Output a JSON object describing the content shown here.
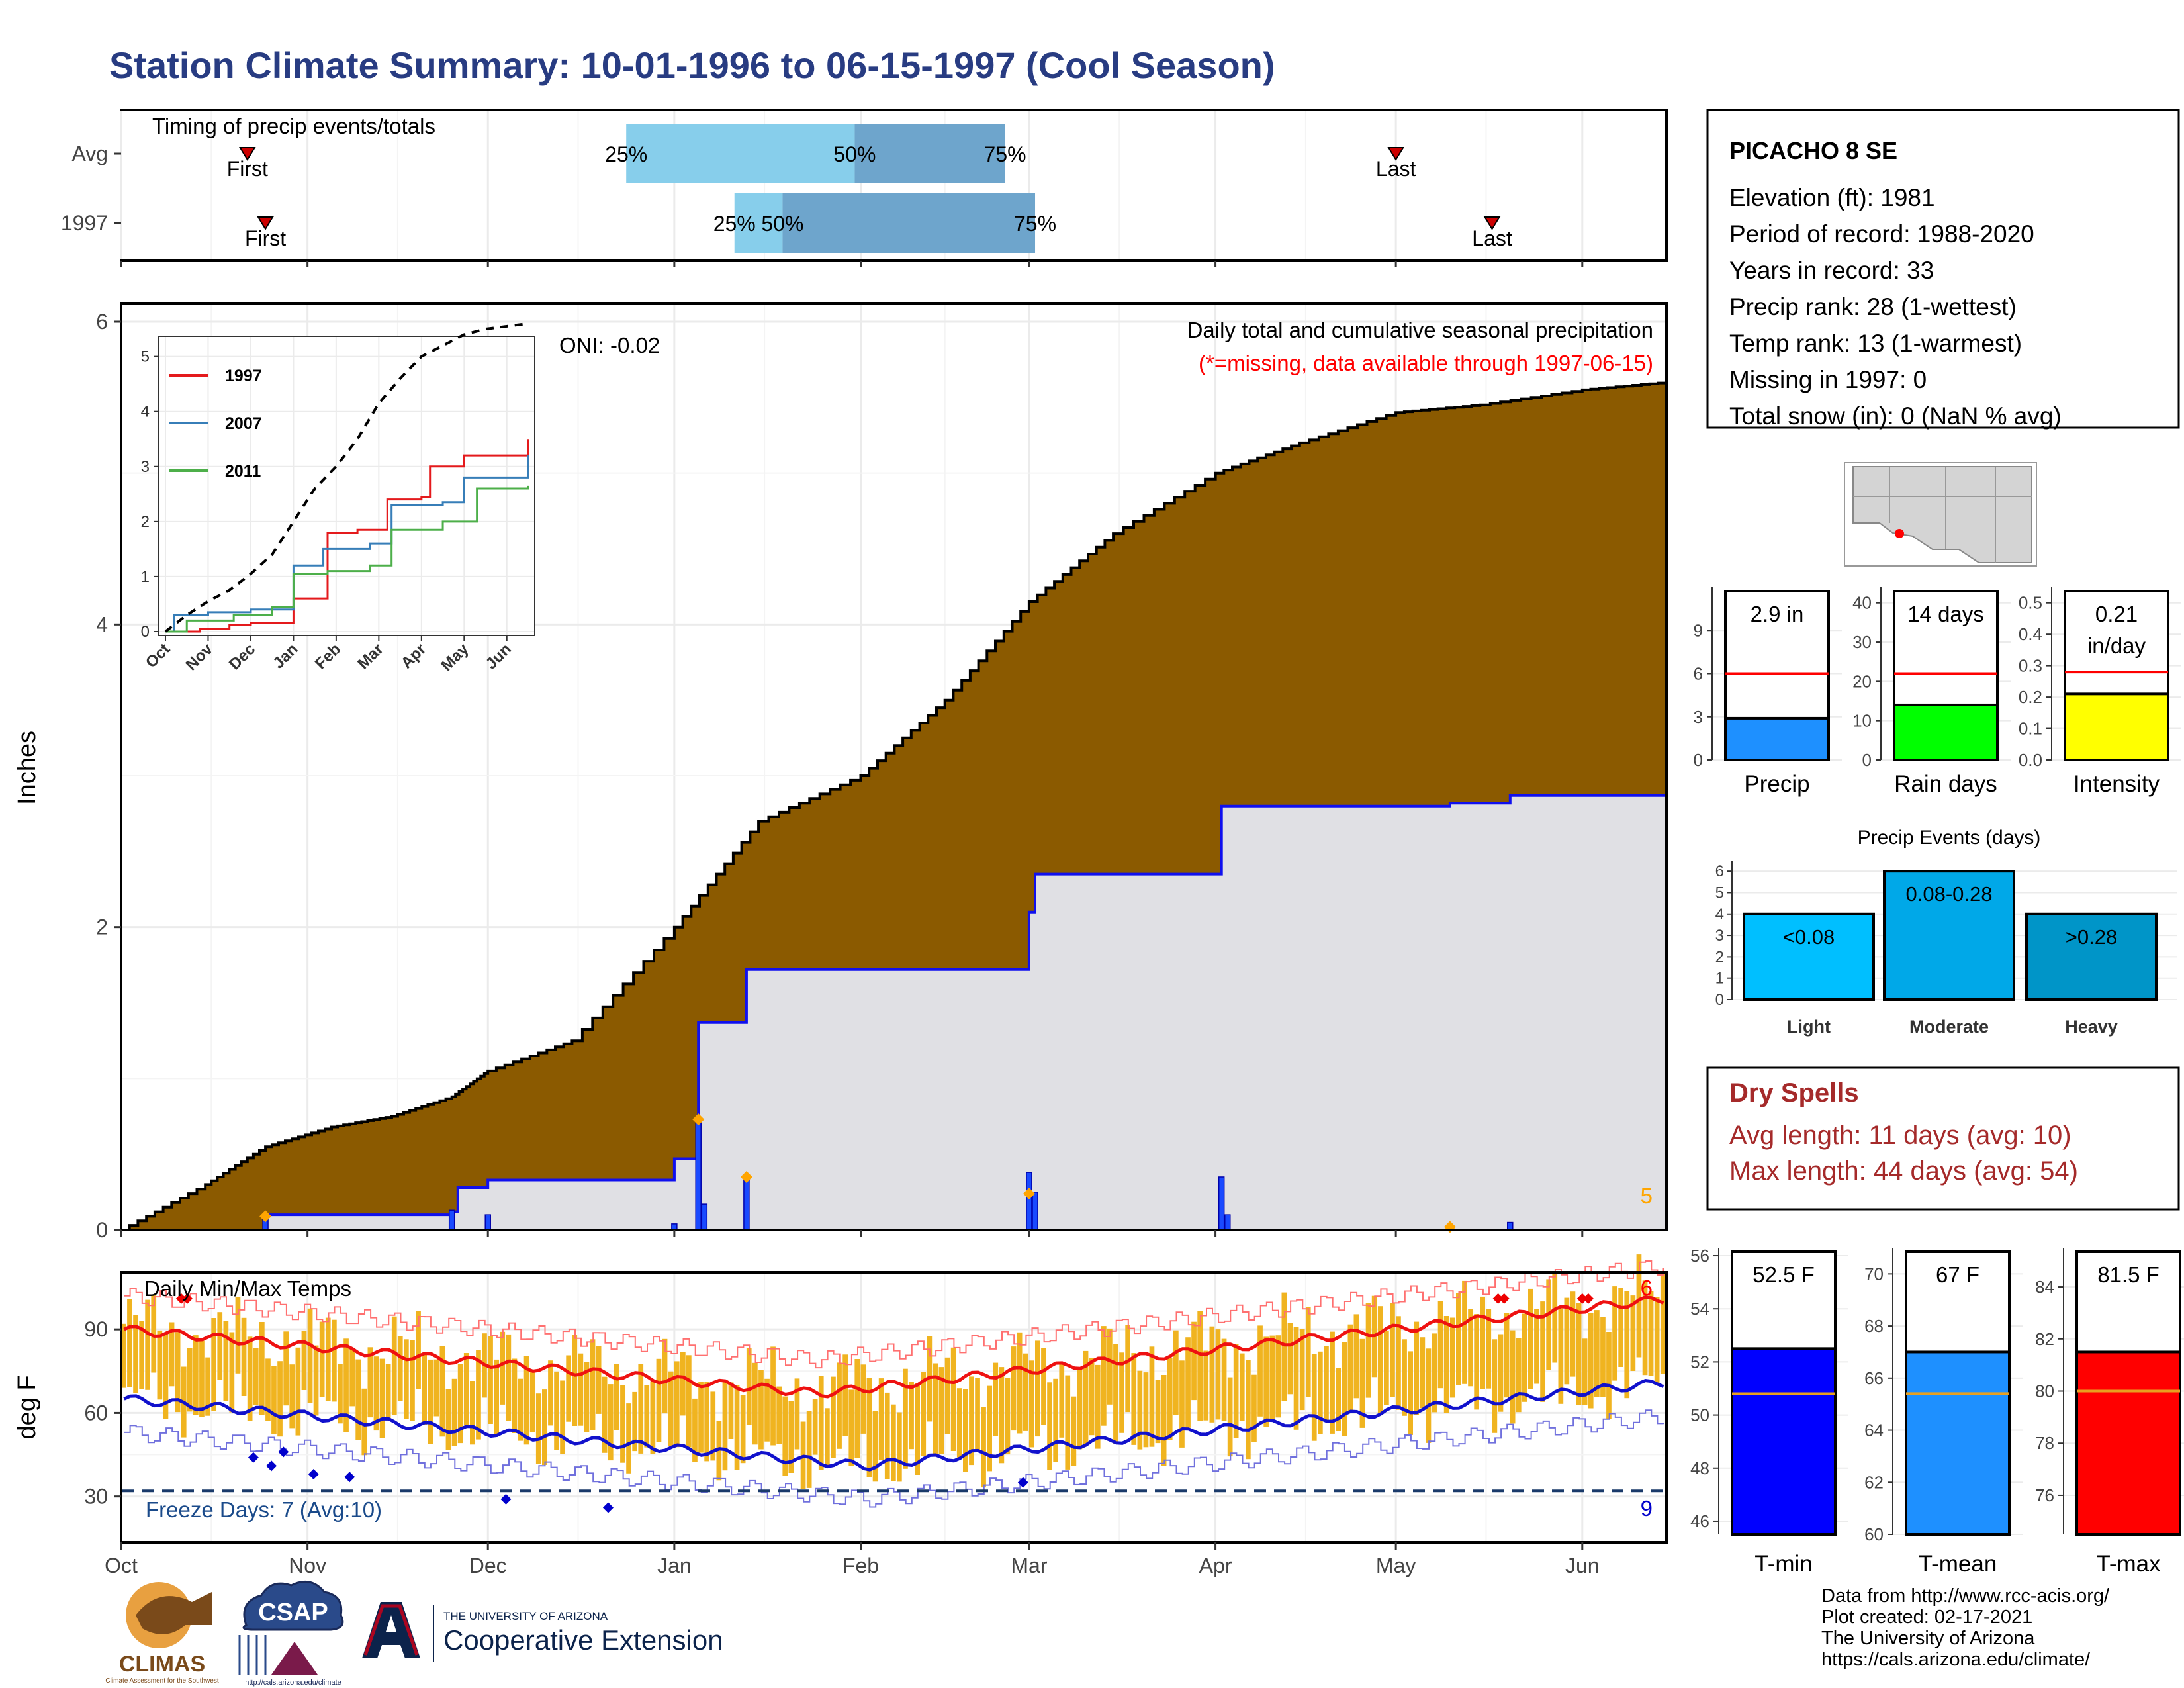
{
  "title": "Station Climate Summary: 10-01-1996 to 06-15-1997 (Cool Season)",
  "colors": {
    "title": "#283c82",
    "cumulative_avg_fill": "#8b5a00",
    "cumulative_year_fill": "#e0e0e4",
    "year_line": "#1010ee",
    "bar_gold": "#f0b420",
    "tmax_line": "#ee1111",
    "tmin_line": "#1111cc",
    "light_blue": "#87ceeb",
    "steel_blue": "#6ea5cc",
    "red": "#ff0000",
    "green": "#00ff00",
    "yellow": "#ffff00",
    "tmean": "#1e90ff",
    "dry_spell_text": "#a52a2a"
  },
  "axis_months": [
    "Oct",
    "Nov",
    "Dec",
    "Jan",
    "Feb",
    "Mar",
    "Apr",
    "May",
    "Jun"
  ],
  "chart_data": [
    {
      "id": "timing",
      "type": "bar",
      "title": "Timing of precip events/totals",
      "rows": [
        {
          "name": "Avg",
          "first": "1996-10-22",
          "p25": "1996-12-24",
          "p50": "1997-01-31",
          "p75": "1997-02-25",
          "last": "1997-05-01",
          "labels": {
            "first": "First",
            "last": "Last",
            "p25": "25%",
            "p50": "50%",
            "p75": "75%"
          }
        },
        {
          "name": "1997",
          "first": "1996-10-25",
          "p25": "1997-01-11",
          "p50": "1997-01-19",
          "p75": "1997-03-02",
          "last": "1997-05-17",
          "labels": {
            "first": "First",
            "last": "Last",
            "p25": "25%",
            "p50": "50%",
            "p75": "75%"
          }
        }
      ]
    },
    {
      "id": "precip",
      "type": "area",
      "title": "Daily total and cumulative seasonal precipitation",
      "subtitle": "(*=missing, data available through 1997-06-15)",
      "annotation": "ONI: -0.02",
      "ylabel": "Inches",
      "ylim": [
        0,
        6
      ],
      "yticks": [
        0,
        2,
        4,
        6
      ],
      "corner_value": "5",
      "avg_cumulative": [
        {
          "date": "1996-10-01",
          "value": 0.0
        },
        {
          "date": "1996-10-15",
          "value": 0.3
        },
        {
          "date": "1996-10-25",
          "value": 0.55
        },
        {
          "date": "1996-11-05",
          "value": 0.68
        },
        {
          "date": "1996-11-15",
          "value": 0.75
        },
        {
          "date": "1996-11-25",
          "value": 0.88
        },
        {
          "date": "1996-12-01",
          "value": 1.05
        },
        {
          "date": "1996-12-15",
          "value": 1.25
        },
        {
          "date": "1997-01-01",
          "value": 2.0
        },
        {
          "date": "1997-01-15",
          "value": 2.7
        },
        {
          "date": "1997-02-01",
          "value": 3.0
        },
        {
          "date": "1997-02-15",
          "value": 3.5
        },
        {
          "date": "1997-03-01",
          "value": 4.15
        },
        {
          "date": "1997-03-15",
          "value": 4.6
        },
        {
          "date": "1997-04-01",
          "value": 5.0
        },
        {
          "date": "1997-04-15",
          "value": 5.2
        },
        {
          "date": "1997-05-01",
          "value": 5.4
        },
        {
          "date": "1997-05-15",
          "value": 5.45
        },
        {
          "date": "1997-06-01",
          "value": 5.55
        },
        {
          "date": "1997-06-15",
          "value": 5.6
        }
      ],
      "year_cumulative": [
        {
          "date": "1996-10-01",
          "value": 0.0
        },
        {
          "date": "1996-10-25",
          "value": 0.1
        },
        {
          "date": "1996-11-25",
          "value": 0.12
        },
        {
          "date": "1996-11-26",
          "value": 0.28
        },
        {
          "date": "1996-12-01",
          "value": 0.33
        },
        {
          "date": "1997-01-01",
          "value": 0.47
        },
        {
          "date": "1997-01-05",
          "value": 1.37
        },
        {
          "date": "1997-01-13",
          "value": 1.72
        },
        {
          "date": "1997-03-01",
          "value": 2.1
        },
        {
          "date": "1997-03-02",
          "value": 2.35
        },
        {
          "date": "1997-04-02",
          "value": 2.8
        },
        {
          "date": "1997-05-10",
          "value": 2.82
        },
        {
          "date": "1997-05-20",
          "value": 2.87
        },
        {
          "date": "1997-06-15",
          "value": 2.88
        }
      ],
      "daily_bars": [
        {
          "date": "1996-10-25",
          "value": 0.08
        },
        {
          "date": "1996-11-25",
          "value": 0.13
        },
        {
          "date": "1996-12-01",
          "value": 0.1
        },
        {
          "date": "1997-01-01",
          "value": 0.04
        },
        {
          "date": "1997-01-05",
          "value": 0.73
        },
        {
          "date": "1997-01-06",
          "value": 0.17
        },
        {
          "date": "1997-01-13",
          "value": 0.35
        },
        {
          "date": "1997-03-01",
          "value": 0.38
        },
        {
          "date": "1997-03-02",
          "value": 0.25
        },
        {
          "date": "1997-04-02",
          "value": 0.35
        },
        {
          "date": "1997-04-03",
          "value": 0.1
        },
        {
          "date": "1997-05-20",
          "value": 0.05
        }
      ],
      "event_markers": [
        {
          "date": "1996-10-25",
          "value": 0.09
        },
        {
          "date": "1997-01-05",
          "value": 0.73
        },
        {
          "date": "1997-01-13",
          "value": 0.35
        },
        {
          "date": "1997-03-01",
          "value": 0.24
        },
        {
          "date": "1997-05-10",
          "value": 0.02
        }
      ]
    },
    {
      "id": "inset",
      "type": "line",
      "xlabels": [
        "Oct",
        "Nov",
        "Dec",
        "Jan",
        "Feb",
        "Mar",
        "Apr",
        "May",
        "Jun"
      ],
      "ylim": [
        0,
        5.2
      ],
      "yticks": [
        0,
        1,
        2,
        3,
        4,
        5
      ],
      "series": [
        {
          "name": "1997",
          "color": "#e41a1c",
          "points": [
            [
              0,
              0
            ],
            [
              0.8,
              0.05
            ],
            [
              1.5,
              0.12
            ],
            [
              2,
              0.15
            ],
            [
              3,
              0.6
            ],
            [
              3.8,
              1.8
            ],
            [
              4.5,
              1.85
            ],
            [
              5.2,
              2.4
            ],
            [
              6,
              2.45
            ],
            [
              6.2,
              3.0
            ],
            [
              7,
              3.2
            ],
            [
              8.5,
              3.5
            ],
            [
              8.5,
              3.5
            ]
          ]
        },
        {
          "name": "2007",
          "color": "#377eb8",
          "points": [
            [
              0,
              0
            ],
            [
              0.2,
              0.3
            ],
            [
              1,
              0.35
            ],
            [
              2,
              0.4
            ],
            [
              3,
              1.2
            ],
            [
              3.7,
              1.5
            ],
            [
              4.8,
              1.6
            ],
            [
              5.3,
              2.3
            ],
            [
              6.5,
              2.35
            ],
            [
              7,
              2.8
            ],
            [
              8.5,
              3.2
            ]
          ]
        },
        {
          "name": "2011",
          "color": "#4daf4a",
          "points": [
            [
              0,
              0
            ],
            [
              0.5,
              0.2
            ],
            [
              1.6,
              0.3
            ],
            [
              2.5,
              0.45
            ],
            [
              3,
              1.05
            ],
            [
              3.8,
              1.1
            ],
            [
              4.8,
              1.2
            ],
            [
              5.3,
              1.85
            ],
            [
              6.5,
              2.0
            ],
            [
              7.3,
              2.6
            ],
            [
              8.5,
              2.65
            ]
          ]
        },
        {
          "name": "",
          "color": "#000000",
          "dashed": true,
          "points": [
            [
              0,
              0
            ],
            [
              0.5,
              0.3
            ],
            [
              1,
              0.55
            ],
            [
              1.5,
              0.75
            ],
            [
              2,
              1.05
            ],
            [
              2.5,
              1.4
            ],
            [
              3,
              2.0
            ],
            [
              3.5,
              2.6
            ],
            [
              4,
              3.0
            ],
            [
              4.5,
              3.5
            ],
            [
              5,
              4.15
            ],
            [
              5.5,
              4.6
            ],
            [
              6,
              5.0
            ],
            [
              6.5,
              5.2
            ],
            [
              7,
              5.4
            ],
            [
              7.5,
              5.5
            ],
            [
              8,
              5.55
            ],
            [
              8.5,
              5.6
            ]
          ]
        }
      ]
    },
    {
      "id": "temps",
      "type": "bar",
      "title": "Daily Min/Max Temps",
      "ylabel": "deg F",
      "ylim": [
        14,
        110
      ],
      "yticks": [
        30,
        60,
        90
      ],
      "freeze_line": 32,
      "freeze_label": "Freeze Days: 7 (Avg:10)",
      "corner_top": "6",
      "corner_bottom": "9"
    },
    {
      "id": "station_bars",
      "type": "bar",
      "panels": [
        {
          "name": "Precip",
          "label": "2.9 in",
          "value": 2.9,
          "avg": 6.0,
          "ylim": [
            0,
            12
          ],
          "yticks": [
            0,
            3,
            6,
            9
          ],
          "color": "#1e90ff"
        },
        {
          "name": "Rain days",
          "label": "14 days",
          "value": 14,
          "avg": 22,
          "ylim": [
            0,
            44
          ],
          "yticks": [
            0,
            10,
            20,
            30,
            40
          ],
          "color": "#00ff00"
        },
        {
          "name": "Intensity",
          "label": "0.21",
          "label2": "in/day",
          "value": 0.21,
          "avg": 0.28,
          "ylim": [
            0,
            0.55
          ],
          "yticks": [
            "0.0",
            "0.1",
            "0.2",
            "0.3",
            "0.4",
            "0.5"
          ],
          "color": "#ffff00"
        }
      ]
    },
    {
      "id": "events",
      "type": "bar",
      "title": "Precip Events (days)",
      "ylim": [
        0,
        6.5
      ],
      "yticks": [
        0,
        1,
        2,
        3,
        4,
        5,
        6
      ],
      "categories": [
        "Light",
        "Moderate",
        "Heavy"
      ],
      "bar_labels": [
        "<0.08",
        "0.08-0.28",
        ">0.28"
      ],
      "values": [
        4,
        6,
        4
      ],
      "colors": [
        "#00bfff",
        "#00a8e8",
        "#0095c8"
      ]
    },
    {
      "id": "temp_bars",
      "type": "bar",
      "panels": [
        {
          "name": "T-min",
          "label": "52.5 F",
          "value": 52.5,
          "avg": 50.8,
          "ylim": [
            45.5,
            56.3
          ],
          "yticks": [
            46,
            48,
            50,
            52,
            54,
            56
          ],
          "color": "#0000ff"
        },
        {
          "name": "T-mean",
          "label": "67 F",
          "value": 67,
          "avg": 65.4,
          "ylim": [
            60,
            71
          ],
          "yticks": [
            60,
            62,
            64,
            66,
            68,
            70
          ],
          "color": "#1e90ff"
        },
        {
          "name": "T-max",
          "label": "81.5 F",
          "value": 81.5,
          "avg": 80,
          "ylim": [
            74.5,
            85.5
          ],
          "yticks": [
            76,
            78,
            80,
            82,
            84
          ],
          "color": "#ff0000"
        }
      ]
    }
  ],
  "station": {
    "name": "PICACHO 8 SE",
    "lines": [
      "Elevation (ft): 1981",
      "Period of record: 1988-2020",
      "Years in record: 33",
      "Precip rank: 28 (1-wettest)",
      "Temp rank: 13 (1-warmest)",
      "Missing in 1997: 0",
      "Total snow (in): 0 (NaN % avg)"
    ]
  },
  "dry_spells": {
    "title": "Dry Spells",
    "avg": "Avg length: 11 days (avg: 10)",
    "max": "Max length: 44 days (avg: 54)"
  },
  "footer": {
    "lines": [
      "Data from http://www.rcc-acis.org/",
      "Plot created: 02-17-2021",
      "The University of Arizona",
      "https://cals.arizona.edu/climate/"
    ]
  },
  "logos": {
    "climas": "CLIMAS",
    "climas_sub": "Climate Assessment for the Southwest",
    "csap": "CSAP",
    "csap_url": "http://cals.arizona.edu/climate",
    "ua_small": "THE UNIVERSITY OF ARIZONA",
    "ua_big": "Cooperative Extension"
  }
}
